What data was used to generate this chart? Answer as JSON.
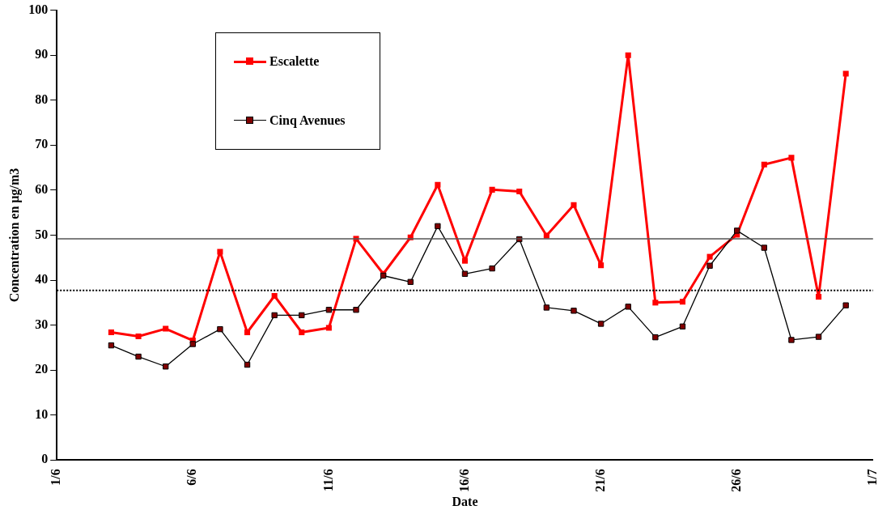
{
  "chart_data": {
    "type": "line",
    "xlabel": "Date",
    "ylabel": "Concentration en µg/m3",
    "x": [
      "--06-03",
      "--06-04",
      "--06-05",
      "--06-06",
      "--06-07",
      "--06-08",
      "--06-09",
      "--06-10",
      "--06-11",
      "--06-12",
      "--06-13",
      "--06-14",
      "--06-15",
      "--06-16",
      "--06-17",
      "--06-18",
      "--06-19",
      "--06-20",
      "--06-21",
      "--06-22",
      "--06-23",
      "--06-24",
      "--06-25",
      "--06-26",
      "--06-27",
      "--06-28",
      "--06-29",
      "--06-30"
    ],
    "series": [
      {
        "name": "Escalette",
        "color": "#ff0000",
        "values": [
          28.4,
          27.5,
          29.2,
          26.6,
          46.3,
          28.4,
          36.5,
          28.4,
          29.4,
          49.2,
          41.4,
          49.5,
          61.2,
          44.3,
          60.1,
          59.7,
          49.9,
          56.7,
          43.3,
          90.0,
          35.0,
          35.2,
          45.2,
          50.1,
          65.7,
          67.2,
          36.3,
          85.9
        ]
      },
      {
        "name": "Cinq Avenues",
        "color": "#800000",
        "values": [
          25.5,
          23.0,
          20.8,
          25.8,
          29.1,
          21.2,
          32.2,
          32.2,
          33.4,
          33.4,
          41.0,
          39.6,
          52.0,
          41.4,
          42.6,
          49.1,
          33.9,
          33.2,
          30.3,
          34.1,
          27.3,
          29.7,
          43.2,
          51.0,
          47.2,
          26.7,
          27.4,
          34.4
        ]
      }
    ],
    "xlim": [
      "--06-01",
      "--07-01"
    ],
    "xticks": [
      {
        "value": "--06-01",
        "label": "1/6"
      },
      {
        "value": "--06-06",
        "label": "6/6"
      },
      {
        "value": "--06-11",
        "label": "11/6"
      },
      {
        "value": "--06-16",
        "label": "16/6"
      },
      {
        "value": "--06-21",
        "label": "21/6"
      },
      {
        "value": "--06-26",
        "label": "26/6"
      },
      {
        "value": "--07-01",
        "label": "1/7"
      }
    ],
    "ylim": [
      0,
      100
    ],
    "yticks": [
      0,
      10,
      20,
      30,
      40,
      50,
      60,
      70,
      80,
      90,
      100
    ],
    "ref_lines": [
      {
        "axis": "y",
        "value": 49.2,
        "line_style": "solid",
        "color": "#555555"
      },
      {
        "axis": "y",
        "value": 37.7,
        "line_style": "dotted",
        "color": "#000000"
      }
    ],
    "grid": false,
    "legend": "top left",
    "marker": "square",
    "line_style": "solid"
  }
}
